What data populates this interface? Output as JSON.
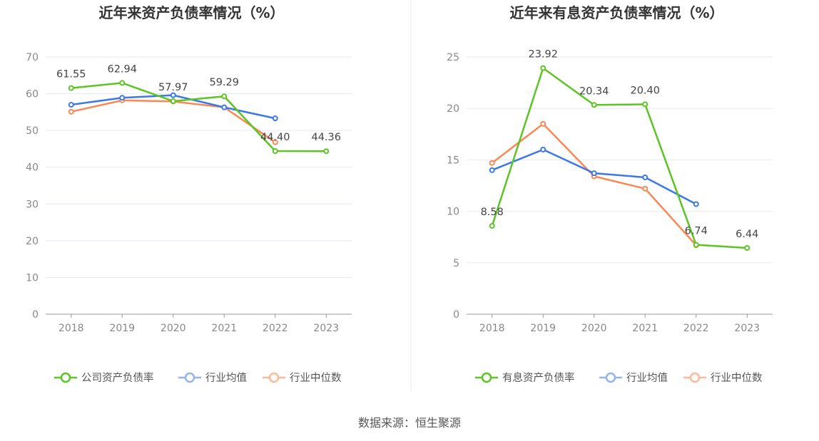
{
  "chart_data": [
    {
      "type": "line",
      "title": "近年来资产负债率情况（%）",
      "categories": [
        "2018",
        "2019",
        "2020",
        "2021",
        "2022",
        "2023"
      ],
      "ylim": [
        0,
        70
      ],
      "yticks": [
        0,
        10,
        20,
        30,
        40,
        50,
        60,
        70
      ],
      "grid": true,
      "legend": "bottom",
      "series": [
        {
          "name": "公司资产负债率",
          "color": "#5cc423",
          "values": [
            61.55,
            62.94,
            57.97,
            59.29,
            44.4,
            44.36
          ],
          "labels": [
            "61.55",
            "62.94",
            "57.97",
            "59.29",
            "44.40",
            "44.36"
          ]
        },
        {
          "name": "行业均值",
          "color": "#3c78e6",
          "values": [
            57.0,
            58.9,
            59.6,
            56.3,
            53.3,
            null
          ]
        },
        {
          "name": "行业中位数",
          "color": "#fb8752",
          "values": [
            55.1,
            58.2,
            57.9,
            56.3,
            46.8,
            null
          ]
        }
      ]
    },
    {
      "type": "line",
      "title": "近年来有息资产负债率情况（%）",
      "categories": [
        "2018",
        "2019",
        "2020",
        "2021",
        "2022",
        "2023"
      ],
      "ylim": [
        0,
        25
      ],
      "yticks": [
        0,
        5,
        10,
        15,
        20,
        25
      ],
      "grid": true,
      "legend": "bottom",
      "series": [
        {
          "name": "有息资产负债率",
          "color": "#5cc423",
          "values": [
            8.58,
            23.92,
            20.34,
            20.4,
            6.74,
            6.44
          ],
          "labels": [
            "8.58",
            "23.92",
            "20.34",
            "20.40",
            "6.74",
            "6.44"
          ]
        },
        {
          "name": "行业均值",
          "color": "#3c78e6",
          "values": [
            14.0,
            16.0,
            13.7,
            13.3,
            10.7,
            null
          ]
        },
        {
          "name": "行业中位数",
          "color": "#fb8752",
          "values": [
            14.7,
            18.5,
            13.4,
            12.2,
            6.7,
            null
          ]
        }
      ]
    }
  ],
  "source": "数据来源：恒生聚源"
}
